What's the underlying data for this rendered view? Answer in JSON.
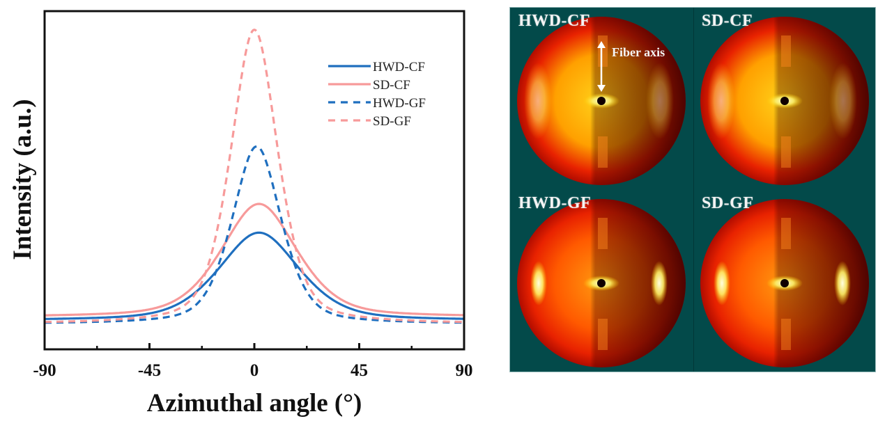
{
  "chart_data": [
    {
      "type": "line",
      "title": "",
      "xlabel": "Azimuthal angle (°)",
      "ylabel": "Intensity (a.u.)",
      "xlim": [
        -90,
        90
      ],
      "ylim": [
        0,
        1
      ],
      "xticks": [
        -90,
        -45,
        0,
        45,
        90
      ],
      "xtick_labels": [
        "-90",
        "-45",
        "0",
        "45",
        "90"
      ],
      "x_minor_ticks": [
        -67.5,
        -22.5,
        22.5,
        67.5
      ],
      "yticks": [],
      "grid": false,
      "legend": {
        "position": "top-right"
      },
      "series": [
        {
          "name": "HWD-CF",
          "color": "#1f6fbf",
          "style": "solid",
          "center": 2,
          "baseline": 0.085,
          "peak": 0.345,
          "width": 18
        },
        {
          "name": "SD-CF",
          "color": "#f79a9a",
          "style": "solid",
          "center": 2,
          "baseline": 0.095,
          "peak": 0.43,
          "width": 17
        },
        {
          "name": "HWD-GF",
          "color": "#1f6fbf",
          "style": "dashed",
          "center": 1,
          "baseline": 0.075,
          "peak": 0.6,
          "width": 11
        },
        {
          "name": "SD-GF",
          "color": "#f79a9a",
          "style": "dashed",
          "center": 0,
          "baseline": 0.075,
          "peak": 0.945,
          "width": 10.5
        }
      ]
    }
  ],
  "xrd_panel": {
    "background": "#034a4a",
    "patterns": [
      {
        "label": "HWD-CF",
        "type": "CF"
      },
      {
        "label": "SD-CF",
        "type": "CF"
      },
      {
        "label": "HWD-GF",
        "type": "GF"
      },
      {
        "label": "SD-GF",
        "type": "GF"
      }
    ],
    "annotation": "Fiber axis"
  }
}
